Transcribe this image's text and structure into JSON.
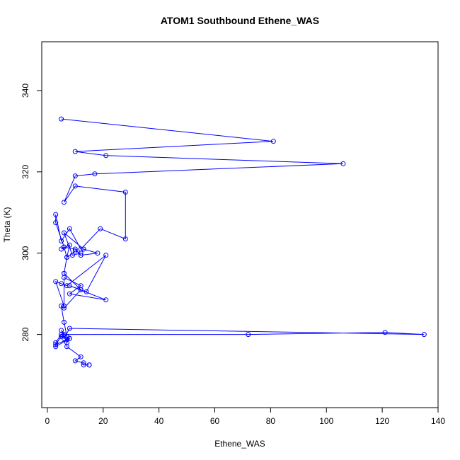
{
  "chart_data": {
    "type": "line",
    "title": "ATOM1 Southbound Ethene_WAS",
    "xlabel": "Ethene_WAS",
    "ylabel": "Theta (K)",
    "xlim": [
      -2,
      140
    ],
    "ylim": [
      262,
      352
    ],
    "xticks": [
      0,
      20,
      40,
      60,
      80,
      100,
      120,
      140
    ],
    "yticks": [
      280,
      300,
      320,
      340
    ],
    "grid": false,
    "colors": {
      "series": "#0000ff"
    },
    "x": [
      5,
      81,
      10,
      21,
      106,
      17,
      10,
      6,
      10,
      28,
      28,
      19,
      12,
      8,
      5,
      3,
      3,
      6,
      7,
      10,
      12,
      9,
      6,
      13,
      18,
      12,
      10,
      6,
      5,
      8,
      7,
      6,
      6,
      12,
      8,
      21,
      8,
      12,
      6,
      6,
      3,
      5,
      7,
      21,
      14,
      12,
      6,
      5,
      6,
      7,
      5,
      7,
      8,
      3,
      5,
      6,
      8,
      135,
      121,
      72,
      6,
      5,
      3,
      3,
      8,
      7,
      7,
      12,
      10,
      13,
      13,
      15,
      15
    ],
    "y": [
      333,
      327.5,
      325,
      324,
      322,
      319.5,
      319,
      312.5,
      316.5,
      315,
      303.5,
      306,
      301,
      306,
      303,
      309.5,
      307.5,
      301.5,
      299,
      300.5,
      300,
      299.5,
      305,
      301,
      300,
      299.5,
      301,
      301.5,
      301,
      302,
      299,
      295,
      295,
      291,
      292,
      288.5,
      290,
      292,
      294,
      287,
      293,
      292.5,
      292,
      299.5,
      290.5,
      291,
      286.5,
      287,
      283,
      279.5,
      281,
      278,
      279,
      277.5,
      279.5,
      279,
      281.5,
      280,
      280.5,
      280,
      280,
      280,
      278,
      277,
      279,
      279.5,
      277,
      274.5,
      273.5,
      273,
      272.5,
      272.5,
      272.5
    ]
  }
}
